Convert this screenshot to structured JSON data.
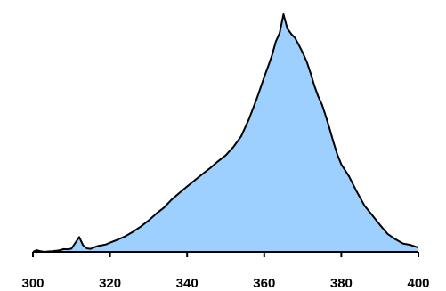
{
  "chart_data": {
    "type": "area",
    "title": "",
    "xlabel": "",
    "ylabel": "",
    "xlim": [
      300,
      400
    ],
    "ylim": [
      0,
      100
    ],
    "grid": false,
    "legend": "none",
    "x_ticks": [
      300,
      320,
      340,
      360,
      380,
      400
    ],
    "x_tick_labels": [
      "300",
      "320",
      "340",
      "360",
      "380",
      "400"
    ],
    "fill_color": "#9dcfff",
    "line_color": "#000000",
    "series": [
      {
        "x": [
          300,
          301,
          302,
          303,
          304,
          305,
          306,
          307,
          308,
          309,
          310,
          311,
          312,
          313,
          314,
          315,
          316,
          317,
          318,
          319,
          320,
          322,
          324,
          326,
          328,
          330,
          332,
          334,
          336,
          338,
          340,
          342,
          344,
          346,
          348,
          350,
          352,
          354,
          356,
          358,
          360,
          361,
          362,
          363,
          364,
          365,
          366,
          367,
          368,
          369,
          370,
          371,
          372,
          373,
          374,
          375,
          376,
          377,
          378,
          379,
          380,
          382,
          384,
          386,
          388,
          390,
          392,
          394,
          396,
          398,
          400
        ],
        "y": [
          0,
          0.8,
          0.3,
          0,
          0.2,
          0.3,
          0.5,
          0.8,
          1.3,
          1.2,
          1.5,
          4.2,
          6.9,
          3.1,
          1.6,
          1.4,
          2.2,
          2.8,
          3.1,
          3.5,
          4.3,
          5.7,
          7.3,
          9.4,
          11.8,
          14.6,
          17.8,
          20.6,
          24.4,
          27.5,
          30.5,
          33.4,
          36.3,
          39.1,
          42.2,
          45.0,
          48.9,
          53.8,
          61.7,
          71.1,
          81.5,
          86.4,
          91.5,
          98.0,
          102.0,
          110.8,
          104.1,
          101.6,
          99.7,
          96.4,
          92.8,
          88.8,
          83.5,
          77.5,
          72.5,
          68.6,
          63.1,
          57.2,
          50.9,
          45.2,
          40.8,
          35.2,
          28.1,
          21.6,
          17.1,
          12.6,
          8.4,
          5.9,
          3.9,
          3.2,
          2.0
        ]
      }
    ]
  }
}
